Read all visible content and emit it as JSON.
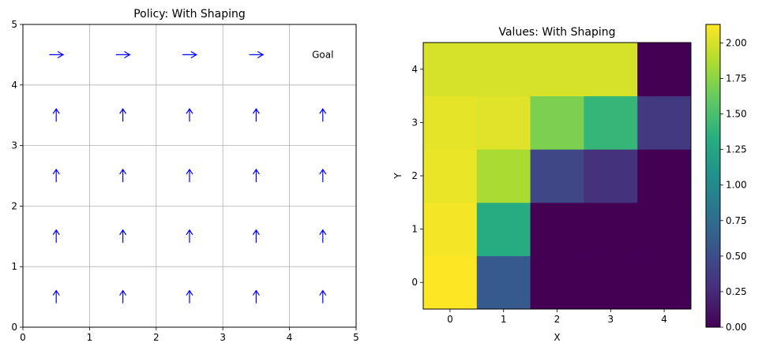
{
  "chart_data": [
    {
      "type": "quiver",
      "title": "Policy: With Shaping",
      "xlabel": "",
      "ylabel": "",
      "xlim": [
        0,
        5
      ],
      "ylim": [
        0,
        5
      ],
      "xticks": [
        "0",
        "1",
        "2",
        "3",
        "4",
        "5"
      ],
      "yticks": [
        "0",
        "1",
        "2",
        "3",
        "4",
        "5"
      ],
      "grid": true,
      "arrow_color": "#0000ff",
      "arrows": [
        {
          "x": 0.5,
          "y": 0.5,
          "dir": "up"
        },
        {
          "x": 1.5,
          "y": 0.5,
          "dir": "up"
        },
        {
          "x": 2.5,
          "y": 0.5,
          "dir": "up"
        },
        {
          "x": 3.5,
          "y": 0.5,
          "dir": "up"
        },
        {
          "x": 4.5,
          "y": 0.5,
          "dir": "up"
        },
        {
          "x": 0.5,
          "y": 1.5,
          "dir": "up"
        },
        {
          "x": 1.5,
          "y": 1.5,
          "dir": "up"
        },
        {
          "x": 2.5,
          "y": 1.5,
          "dir": "up"
        },
        {
          "x": 3.5,
          "y": 1.5,
          "dir": "up"
        },
        {
          "x": 4.5,
          "y": 1.5,
          "dir": "up"
        },
        {
          "x": 0.5,
          "y": 2.5,
          "dir": "up"
        },
        {
          "x": 1.5,
          "y": 2.5,
          "dir": "up"
        },
        {
          "x": 2.5,
          "y": 2.5,
          "dir": "up"
        },
        {
          "x": 3.5,
          "y": 2.5,
          "dir": "up"
        },
        {
          "x": 4.5,
          "y": 2.5,
          "dir": "up"
        },
        {
          "x": 0.5,
          "y": 3.5,
          "dir": "up"
        },
        {
          "x": 1.5,
          "y": 3.5,
          "dir": "up"
        },
        {
          "x": 2.5,
          "y": 3.5,
          "dir": "up"
        },
        {
          "x": 3.5,
          "y": 3.5,
          "dir": "up"
        },
        {
          "x": 4.5,
          "y": 3.5,
          "dir": "up"
        },
        {
          "x": 0.5,
          "y": 4.5,
          "dir": "right"
        },
        {
          "x": 1.5,
          "y": 4.5,
          "dir": "right"
        },
        {
          "x": 2.5,
          "y": 4.5,
          "dir": "right"
        },
        {
          "x": 3.5,
          "y": 4.5,
          "dir": "right"
        }
      ],
      "annotations": [
        {
          "x": 4.5,
          "y": 4.5,
          "text": "Goal"
        }
      ]
    },
    {
      "type": "heatmap",
      "title": "Values: With Shaping",
      "xlabel": "X",
      "ylabel": "Y",
      "xticks": [
        "0",
        "1",
        "2",
        "3",
        "4"
      ],
      "yticks": [
        "0",
        "1",
        "2",
        "3",
        "4"
      ],
      "colormap": "viridis",
      "vmin": 0,
      "vmax": 2.13,
      "colorbar_ticks": [
        "0.00",
        "0.25",
        "0.50",
        "0.75",
        "1.00",
        "1.25",
        "1.50",
        "1.75",
        "2.00"
      ],
      "rows_by_y": [
        [
          2.13,
          0.6,
          0.0,
          0.0,
          0.0
        ],
        [
          2.1,
          1.3,
          0.0,
          0.0,
          0.0
        ],
        [
          2.07,
          1.85,
          0.45,
          0.3,
          0.0
        ],
        [
          2.05,
          2.03,
          1.7,
          1.4,
          0.35
        ],
        [
          2.0,
          2.0,
          2.0,
          2.0,
          0.0
        ]
      ]
    }
  ]
}
